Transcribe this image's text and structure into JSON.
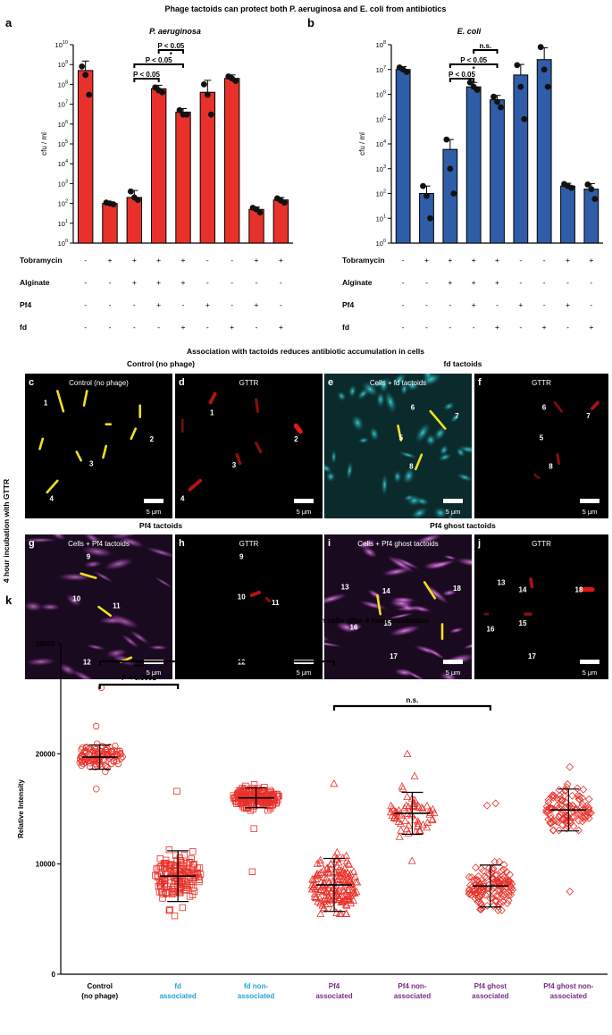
{
  "figure": {
    "main_title": "Phage tactoids can protect both P. aeruginosa and E. coli from antibiotics",
    "section2_title": "Association with tactoids reduces antibiotic accumulation in cells",
    "vertical_label": "4 hour incubation with GTTR"
  },
  "conditions": {
    "row_labels": [
      "Tobramycin",
      "Alginate",
      "Pf4",
      "fd"
    ],
    "rows": [
      [
        "-",
        "+",
        "+",
        "+",
        "+",
        "-",
        "-",
        "+",
        "+"
      ],
      [
        "-",
        "-",
        "+",
        "+",
        "+",
        "-",
        "-",
        "-",
        "-"
      ],
      [
        "-",
        "-",
        "-",
        "+",
        "-",
        "+",
        "-",
        "+",
        "-"
      ],
      [
        "-",
        "-",
        "-",
        "-",
        "+",
        "-",
        "+",
        "-",
        "+"
      ]
    ]
  },
  "panels": {
    "c": {
      "letter": "c",
      "header": "Control (no phage)",
      "label": "Control (no phage)",
      "scale": "5 μm",
      "cells": [
        "1",
        "2",
        "3",
        "4"
      ]
    },
    "d": {
      "letter": "d",
      "label": "GTTR",
      "scale": "5 μm",
      "cells": [
        "1",
        "2",
        "3",
        "4"
      ]
    },
    "e": {
      "letter": "e",
      "header": "fd tactoids",
      "label": "Cells + fd tactoids",
      "scale": "5 μm",
      "cells": [
        "6",
        "7",
        "5",
        "8"
      ]
    },
    "f": {
      "letter": "f",
      "label": "GTTR",
      "scale": "5 μm",
      "cells": [
        "6",
        "7",
        "5",
        "8"
      ]
    },
    "g": {
      "letter": "g",
      "header": "Pf4 tactoids",
      "label": "Cells + Pf4 tactoids",
      "scale": "5 μm",
      "cells": [
        "9",
        "10",
        "11",
        "12"
      ]
    },
    "h": {
      "letter": "h",
      "label": "GTTR",
      "scale": "5 μm",
      "cells": [
        "9",
        "10",
        "11",
        "12"
      ]
    },
    "i": {
      "letter": "i",
      "header": "Pf4 ghost tactoids",
      "label": "Cells + Pf4 ghost tactoids",
      "scale": "5 μm",
      "cells": [
        "13",
        "14",
        "18",
        "15",
        "16",
        "17"
      ]
    },
    "j": {
      "letter": "j",
      "label": "GTTR",
      "scale": "5 μm",
      "cells": [
        "13",
        "14",
        "18",
        "15",
        "16",
        "17"
      ]
    }
  },
  "colors": {
    "red_bar": "#e8312a",
    "blue_bar": "#2f5da8",
    "scatter_red": "#e8312a",
    "label_blue": "#1fa3d6",
    "label_purple": "#7a2a8a",
    "cyan_cells": "#27c2c8",
    "magenta_tactoid": "#c050c8",
    "yellow_cells": "#f0e020",
    "gttr_red": "#e01818"
  },
  "chart_data": [
    {
      "panel": "a",
      "type": "bar",
      "title": "P. aeruginosa",
      "ylabel": "cfu / ml",
      "scale": "log",
      "ylim": [
        1,
        10000000000
      ],
      "yticks": [
        {
          "v": 1,
          "b": "10",
          "e": "0"
        },
        {
          "v": 10,
          "b": "10",
          "e": "1"
        },
        {
          "v": 100,
          "b": "10",
          "e": "2"
        },
        {
          "v": 1000,
          "b": "10",
          "e": "3"
        },
        {
          "v": 10000,
          "b": "10",
          "e": "4"
        },
        {
          "v": 100000,
          "b": "10",
          "e": "5"
        },
        {
          "v": 1000000,
          "b": "10",
          "e": "6"
        },
        {
          "v": 10000000,
          "b": "10",
          "e": "7"
        },
        {
          "v": 100000000,
          "b": "10",
          "e": "8"
        },
        {
          "v": 1000000000,
          "b": "10",
          "e": "9"
        },
        {
          "v": 10000000000,
          "b": "10",
          "e": "10"
        }
      ],
      "bars": [
        {
          "mean": 500000000,
          "err_hi": 1500000000,
          "points": [
            800000000,
            300000000,
            30000000
          ]
        },
        {
          "mean": 100,
          "err_hi": 120,
          "points": [
            110,
            100,
            90
          ]
        },
        {
          "mean": 200,
          "err_hi": 450,
          "points": [
            400,
            200,
            150
          ]
        },
        {
          "mean": 60000000,
          "err_hi": 90000000,
          "points": [
            70000000,
            50000000,
            40000000
          ]
        },
        {
          "mean": 4000000,
          "err_hi": 6000000,
          "points": [
            5000000,
            3000000,
            3000000
          ]
        },
        {
          "mean": 40000000,
          "err_hi": 160000000,
          "points": [
            100000000,
            30000000,
            3000000
          ]
        },
        {
          "mean": 200000000,
          "err_hi": 300000000,
          "points": [
            250000000,
            200000000,
            150000000
          ]
        },
        {
          "mean": 50,
          "err_hi": 65,
          "points": [
            60,
            50,
            35
          ]
        },
        {
          "mean": 150,
          "err_hi": 200,
          "points": [
            180,
            140,
            110
          ]
        }
      ],
      "significance": [
        {
          "from": 2,
          "to": 3,
          "label": "P < 0.05",
          "star": "",
          "level": 0
        },
        {
          "from": 2,
          "to": 4,
          "label": "P < 0.05",
          "star": "",
          "level": 1
        },
        {
          "from": 3,
          "to": 4,
          "label": "P < 0.05",
          "star": "*",
          "level": 2
        }
      ]
    },
    {
      "panel": "b",
      "type": "bar",
      "title": "E. coli",
      "ylabel": "cfu / ml",
      "scale": "log",
      "ylim": [
        1,
        100000000
      ],
      "yticks": [
        {
          "v": 1,
          "b": "10",
          "e": "0"
        },
        {
          "v": 10,
          "b": "10",
          "e": "1"
        },
        {
          "v": 100,
          "b": "10",
          "e": "2"
        },
        {
          "v": 1000,
          "b": "10",
          "e": "3"
        },
        {
          "v": 10000,
          "b": "10",
          "e": "4"
        },
        {
          "v": 100000,
          "b": "10",
          "e": "5"
        },
        {
          "v": 1000000,
          "b": "10",
          "e": "6"
        },
        {
          "v": 10000000,
          "b": "10",
          "e": "7"
        },
        {
          "v": 100000000,
          "b": "10",
          "e": "8"
        }
      ],
      "bars": [
        {
          "mean": 10000000,
          "err_hi": 13000000,
          "points": [
            12000000,
            10000000,
            8000000
          ]
        },
        {
          "mean": 100,
          "err_hi": 200,
          "points": [
            200,
            80,
            10
          ]
        },
        {
          "mean": 6000,
          "err_hi": 15000,
          "points": [
            15000,
            1000,
            100
          ]
        },
        {
          "mean": 2000000,
          "err_hi": 3000000,
          "points": [
            3000000,
            2000000,
            1500000
          ]
        },
        {
          "mean": 600000,
          "err_hi": 900000,
          "points": [
            800000,
            500000,
            300000
          ]
        },
        {
          "mean": 6000000,
          "err_hi": 16000000,
          "points": [
            15000000,
            2000000,
            100000
          ]
        },
        {
          "mean": 25000000,
          "err_hi": 75000000,
          "points": [
            80000000,
            10000000,
            2000000
          ]
        },
        {
          "mean": 200,
          "err_hi": 260,
          "points": [
            240,
            200,
            170
          ]
        },
        {
          "mean": 150,
          "err_hi": 250,
          "points": [
            230,
            150,
            60
          ]
        }
      ],
      "significance": [
        {
          "from": 2,
          "to": 3,
          "label": "P < 0.05",
          "star": "",
          "level": 0
        },
        {
          "from": 2,
          "to": 4,
          "label": "P < 0.05",
          "star": "*",
          "level": 1
        },
        {
          "from": 3,
          "to": 4,
          "label": "n.s.",
          "star": "",
          "level": 2
        }
      ]
    },
    {
      "panel": "k",
      "type": "scatter",
      "title": "Quantification of GTTR accumulation in cells after 4 hour incubation",
      "ylabel": "Relative Intensity",
      "ylim": [
        0,
        30000
      ],
      "yticks": [
        0,
        10000,
        20000,
        30000
      ],
      "groups": [
        {
          "name": "Control\n(no phage)",
          "color": "#000000",
          "marker": "circle",
          "mean": 19700,
          "sd": 1100,
          "min": 16800,
          "max": 22500,
          "outliers": [
            26000
          ],
          "n": 110
        },
        {
          "name": "fd\nassociated",
          "color": "#1fa3d6",
          "marker": "square",
          "mean": 8900,
          "sd": 2300,
          "min": 5300,
          "max": 16600,
          "outliers": [],
          "n": 150
        },
        {
          "name": "fd  non-\nassociated",
          "color": "#1fa3d6",
          "marker": "square",
          "mean": 16000,
          "sd": 900,
          "min": 13200,
          "max": 17200,
          "outliers": [
            9300
          ],
          "n": 180
        },
        {
          "name": "Pf4\nassociated",
          "color": "#7a2a8a",
          "marker": "triangle",
          "mean": 8100,
          "sd": 2400,
          "min": 5500,
          "max": 17300,
          "outliers": [],
          "n": 160
        },
        {
          "name": "Pf4 non-\nassociated",
          "color": "#7a2a8a",
          "marker": "triangle",
          "mean": 14600,
          "sd": 1900,
          "min": 10300,
          "max": 18000,
          "outliers": [
            20000
          ],
          "n": 60
        },
        {
          "name": "Pf4 ghost\nassociated",
          "color": "#7a2a8a",
          "marker": "diamond",
          "mean": 8000,
          "sd": 1900,
          "min": 5800,
          "max": 10200,
          "outliers": [
            15500,
            15300
          ],
          "n": 130
        },
        {
          "name": "Pf4 ghost non-\nassociated",
          "color": "#7a2a8a",
          "marker": "diamond",
          "mean": 14900,
          "sd": 1900,
          "min": 7500,
          "max": 18800,
          "outliers": [],
          "n": 110
        }
      ],
      "significance": [
        {
          "from": 0,
          "to": 1,
          "label": "P < 0.0001",
          "star": "****",
          "level": 0
        },
        {
          "from": 0,
          "to": 3,
          "label": "P < 0.0001",
          "star": "****",
          "level": 1
        },
        {
          "from": 3,
          "to": 5,
          "label": "n.s.",
          "star": "",
          "level": 2
        }
      ]
    }
  ]
}
